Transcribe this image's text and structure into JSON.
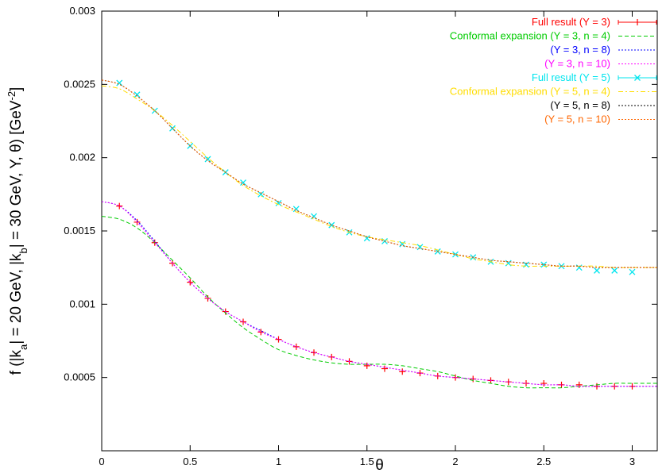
{
  "chart_data": {
    "type": "line",
    "xlabel": "θ",
    "ylabel": {
      "parts": [
        {
          "t": "f (|k",
          "sub": false
        },
        {
          "t": "a",
          "sub": true
        },
        {
          "t": "| = 20 GeV, |k",
          "sub": false
        },
        {
          "t": "b",
          "sub": true
        },
        {
          "t": "| = 30 GeV, Y, θ) [GeV",
          "sub": false
        },
        {
          "t": "-2",
          "sup": true
        },
        {
          "t": "]",
          "sub": false
        }
      ]
    },
    "xlim": [
      0,
      3.1416
    ],
    "ylim": [
      0,
      0.003
    ],
    "xticks": [
      0,
      0.5,
      1,
      1.5,
      2,
      2.5,
      3
    ],
    "xtick_labels": [
      "0",
      "0.5",
      "1",
      "1.5",
      "2",
      "2.5",
      "3"
    ],
    "yticks": [
      0.0005,
      0.001,
      0.0015,
      0.002,
      0.0025,
      0.003
    ],
    "ytick_labels": [
      "0.0005",
      "0.001",
      "0.0015",
      "0.002",
      "0.0025",
      "0.003"
    ],
    "grid": false,
    "legend_position": "top-right",
    "series": [
      {
        "name": "Full result (Y =  3)",
        "color": "#ff0000",
        "style": "errorbar-plus",
        "x": [
          0.1,
          0.2,
          0.3,
          0.4,
          0.5,
          0.6,
          0.7,
          0.8,
          0.9,
          1.0,
          1.1,
          1.2,
          1.3,
          1.4,
          1.5,
          1.6,
          1.7,
          1.8,
          1.9,
          2.0,
          2.1,
          2.2,
          2.3,
          2.4,
          2.5,
          2.6,
          2.7,
          2.8,
          2.9,
          3.0
        ],
        "y": [
          0.00167,
          0.00156,
          0.00142,
          0.00128,
          0.00115,
          0.00104,
          0.00095,
          0.00088,
          0.00081,
          0.00076,
          0.00071,
          0.00067,
          0.00064,
          0.00061,
          0.00058,
          0.00056,
          0.00054,
          0.00053,
          0.00051,
          0.0005,
          0.00049,
          0.00048,
          0.00047,
          0.00046,
          0.00046,
          0.00045,
          0.00045,
          0.00044,
          0.00044,
          0.00044
        ]
      },
      {
        "name": "Conformal expansion (Y =  3, n =  4)",
        "color": "#00cc00",
        "style": "dashed",
        "x": [
          0,
          0.1,
          0.2,
          0.3,
          0.4,
          0.5,
          0.6,
          0.7,
          0.8,
          0.9,
          1.0,
          1.1,
          1.2,
          1.3,
          1.4,
          1.5,
          1.6,
          1.7,
          1.8,
          1.9,
          2.0,
          2.1,
          2.2,
          2.3,
          2.4,
          2.5,
          2.6,
          2.7,
          2.8,
          2.9,
          3.0,
          3.1416
        ],
        "y": [
          0.0016,
          0.00158,
          0.00152,
          0.00142,
          0.0013,
          0.00118,
          0.00105,
          0.00094,
          0.00084,
          0.00076,
          0.00069,
          0.00065,
          0.00062,
          0.0006,
          0.00059,
          0.00059,
          0.00059,
          0.00058,
          0.00056,
          0.00054,
          0.00051,
          0.00048,
          0.00046,
          0.00044,
          0.00043,
          0.00043,
          0.00043,
          0.00044,
          0.00045,
          0.00046,
          0.00046,
          0.00046
        ]
      },
      {
        "name": "(Y =  3, n =  8)",
        "color": "#0000ff",
        "style": "dotted",
        "x": [
          0,
          0.1,
          0.2,
          0.3,
          0.4,
          0.5,
          0.6,
          0.7,
          0.8,
          0.9,
          1.0,
          1.1,
          1.2,
          1.3,
          1.4,
          1.5,
          1.6,
          1.7,
          1.8,
          1.9,
          2.0,
          2.1,
          2.2,
          2.3,
          2.4,
          2.5,
          2.6,
          2.7,
          2.8,
          2.9,
          3.0,
          3.1416
        ],
        "y": [
          0.0017,
          0.00167,
          0.00157,
          0.00143,
          0.00128,
          0.00115,
          0.00104,
          0.00095,
          0.00088,
          0.00082,
          0.00076,
          0.00071,
          0.00067,
          0.00064,
          0.00061,
          0.00059,
          0.00057,
          0.00055,
          0.00053,
          0.00051,
          0.0005,
          0.00049,
          0.00048,
          0.00047,
          0.00046,
          0.00045,
          0.00045,
          0.00044,
          0.00044,
          0.00044,
          0.00044,
          0.00044
        ]
      },
      {
        "name": "(Y =  3, n = 10)",
        "color": "#ff00ff",
        "style": "dotted",
        "x": [
          0,
          0.1,
          0.2,
          0.3,
          0.4,
          0.5,
          0.6,
          0.7,
          0.8,
          0.9,
          1.0,
          1.1,
          1.2,
          1.3,
          1.4,
          1.5,
          1.6,
          1.7,
          1.8,
          1.9,
          2.0,
          2.1,
          2.2,
          2.3,
          2.4,
          2.5,
          2.6,
          2.7,
          2.8,
          2.9,
          3.0,
          3.1416
        ],
        "y": [
          0.0017,
          0.00167,
          0.00156,
          0.00142,
          0.00128,
          0.00115,
          0.00104,
          0.00095,
          0.00088,
          0.00081,
          0.00076,
          0.00071,
          0.00067,
          0.00064,
          0.00061,
          0.00059,
          0.00057,
          0.00055,
          0.00053,
          0.00051,
          0.0005,
          0.00049,
          0.00048,
          0.00047,
          0.00046,
          0.00045,
          0.00045,
          0.00044,
          0.00044,
          0.00044,
          0.00044,
          0.00044
        ]
      },
      {
        "name": "Full result (Y =  5)",
        "color": "#00e5ee",
        "style": "errorbar-cross",
        "x": [
          0.1,
          0.2,
          0.3,
          0.4,
          0.5,
          0.6,
          0.7,
          0.8,
          0.9,
          1.0,
          1.1,
          1.2,
          1.3,
          1.4,
          1.5,
          1.6,
          1.7,
          1.8,
          1.9,
          2.0,
          2.1,
          2.2,
          2.3,
          2.4,
          2.5,
          2.6,
          2.7,
          2.8,
          2.9,
          3.0
        ],
        "y": [
          0.00251,
          0.00243,
          0.00232,
          0.0022,
          0.00208,
          0.00199,
          0.0019,
          0.00183,
          0.00175,
          0.00169,
          0.00165,
          0.0016,
          0.00154,
          0.00149,
          0.00145,
          0.00143,
          0.00141,
          0.00139,
          0.00136,
          0.00134,
          0.00132,
          0.00129,
          0.00128,
          0.00127,
          0.00127,
          0.00126,
          0.00125,
          0.00123,
          0.00123,
          0.00122
        ]
      },
      {
        "name": "Conformal expansion (Y =  5, n =  4)",
        "color": "#ffdd00",
        "style": "dash-dot",
        "x": [
          0,
          0.1,
          0.2,
          0.3,
          0.4,
          0.5,
          0.6,
          0.7,
          0.8,
          0.9,
          1.0,
          1.1,
          1.2,
          1.3,
          1.4,
          1.5,
          1.6,
          1.7,
          1.8,
          1.9,
          2.0,
          2.1,
          2.2,
          2.3,
          2.4,
          2.5,
          2.6,
          2.7,
          2.8,
          2.9,
          3.0,
          3.1416
        ],
        "y": [
          0.00249,
          0.00247,
          0.0024,
          0.00232,
          0.00222,
          0.00211,
          0.002,
          0.0019,
          0.00181,
          0.00174,
          0.00168,
          0.00163,
          0.00158,
          0.00153,
          0.00149,
          0.00146,
          0.00144,
          0.00142,
          0.0014,
          0.00137,
          0.00134,
          0.00131,
          0.00129,
          0.00127,
          0.00126,
          0.00126,
          0.00126,
          0.00126,
          0.00126,
          0.00125,
          0.00125,
          0.00125
        ]
      },
      {
        "name": "(Y =  5, n =  8)",
        "color": "#000000",
        "style": "dotted",
        "x": [
          0,
          0.1,
          0.2,
          0.3,
          0.4,
          0.5,
          0.6,
          0.7,
          0.8,
          0.9,
          1.0,
          1.1,
          1.2,
          1.3,
          1.4,
          1.5,
          1.6,
          1.7,
          1.8,
          1.9,
          2.0,
          2.1,
          2.2,
          2.3,
          2.4,
          2.5,
          2.6,
          2.7,
          2.8,
          2.9,
          3.0,
          3.1416
        ],
        "y": [
          0.00253,
          0.0025,
          0.00242,
          0.00232,
          0.0022,
          0.00208,
          0.00198,
          0.0019,
          0.00182,
          0.00176,
          0.0017,
          0.00164,
          0.00159,
          0.00154,
          0.0015,
          0.00146,
          0.00143,
          0.0014,
          0.00138,
          0.00136,
          0.00134,
          0.00132,
          0.0013,
          0.00129,
          0.00128,
          0.00127,
          0.00126,
          0.00126,
          0.00125,
          0.00125,
          0.00125,
          0.00125
        ]
      },
      {
        "name": "(Y =  5, n = 10)",
        "color": "#ff6600",
        "style": "dotted",
        "x": [
          0,
          0.1,
          0.2,
          0.3,
          0.4,
          0.5,
          0.6,
          0.7,
          0.8,
          0.9,
          1.0,
          1.1,
          1.2,
          1.3,
          1.4,
          1.5,
          1.6,
          1.7,
          1.8,
          1.9,
          2.0,
          2.1,
          2.2,
          2.3,
          2.4,
          2.5,
          2.6,
          2.7,
          2.8,
          2.9,
          3.0,
          3.1416
        ],
        "y": [
          0.00253,
          0.0025,
          0.00242,
          0.00232,
          0.0022,
          0.00208,
          0.00198,
          0.0019,
          0.00182,
          0.00176,
          0.0017,
          0.00164,
          0.00159,
          0.00154,
          0.0015,
          0.00146,
          0.00143,
          0.0014,
          0.00138,
          0.00136,
          0.00134,
          0.00132,
          0.0013,
          0.00129,
          0.00128,
          0.00127,
          0.00126,
          0.00126,
          0.00125,
          0.00125,
          0.00125,
          0.00125
        ]
      }
    ]
  }
}
